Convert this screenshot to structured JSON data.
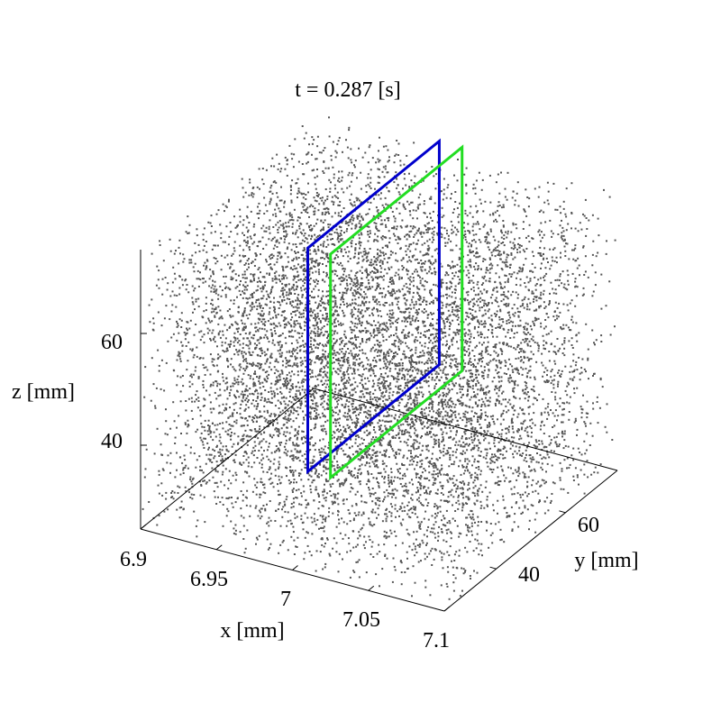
{
  "chart_data": {
    "type": "scatter",
    "projection": "3d",
    "title": "t = 0.287 [s]",
    "xlabel": "x [mm]",
    "ylabel": "y [mm]",
    "zlabel": "z [mm]",
    "xlim": [
      6.9,
      7.1
    ],
    "ylim": [
      25,
      75
    ],
    "zlim": [
      25,
      75
    ],
    "x_ticks": [
      "6.9",
      "6.95",
      "7",
      "7.05",
      "7.1"
    ],
    "y_ticks": [
      "40",
      "60"
    ],
    "z_ticks": [
      "40",
      "60"
    ],
    "grid": false,
    "legend": "none",
    "point_color": "#555555",
    "point_count_estimate": 9000,
    "planes": [
      {
        "color": "#0000cc",
        "x": 6.985,
        "y": [
          36,
          74
        ],
        "z": [
          36,
          76
        ]
      },
      {
        "color": "#22dd22",
        "x": 7.0,
        "y": [
          36,
          74
        ],
        "z": [
          36,
          76
        ]
      }
    ]
  }
}
